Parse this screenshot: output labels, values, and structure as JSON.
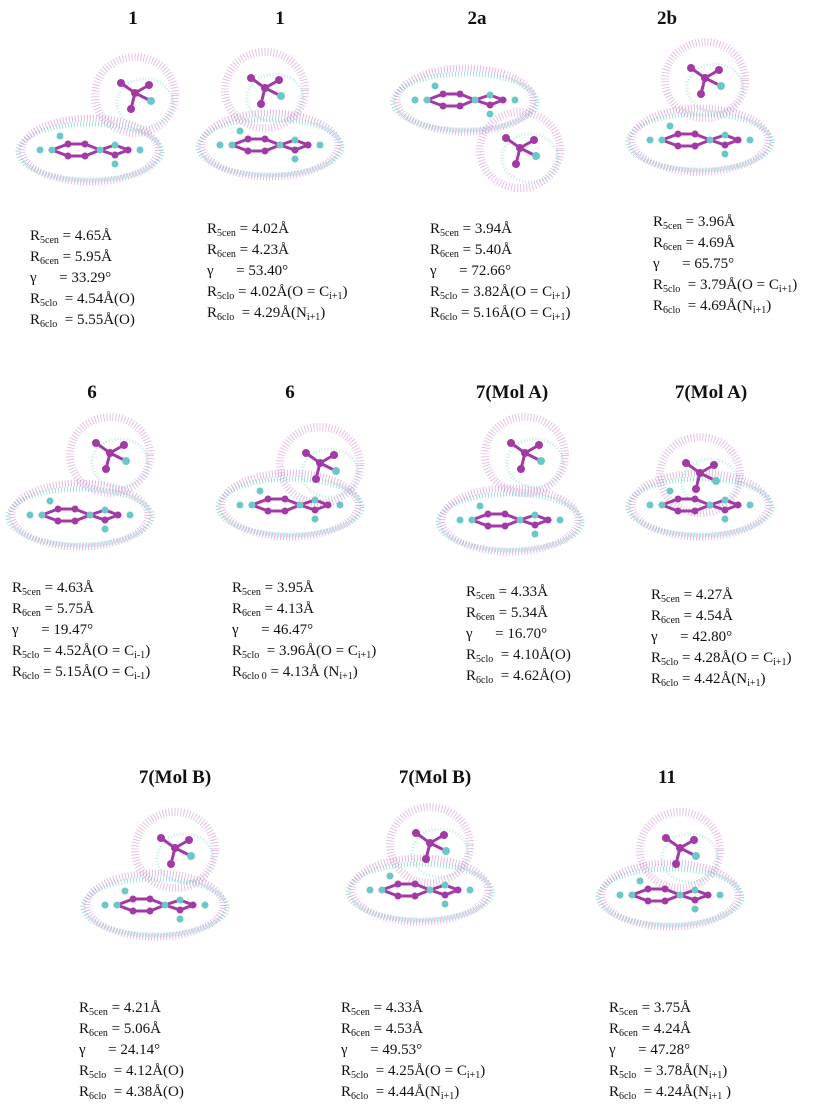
{
  "panels": [
    {
      "title": "1",
      "lines": [
        [
          "R",
          {
            "sub": "5cen"
          },
          " = 4.65Å"
        ],
        [
          "R",
          {
            "sub": "6cen"
          },
          " = 5.95Å"
        ],
        [
          "γ      = 33.29°"
        ],
        [
          "R",
          {
            "sub": "5clo"
          },
          "  = 4.54Å(O)"
        ],
        [
          "R",
          {
            "sub": "6clo"
          },
          "  = 5.55Å(O)"
        ]
      ]
    },
    {
      "title": "1",
      "lines": [
        [
          "R",
          {
            "sub": "5cen"
          },
          " = 4.02Å"
        ],
        [
          "R",
          {
            "sub": "6cen"
          },
          " = 4.23Å"
        ],
        [
          "γ      = 53.40°"
        ],
        [
          "R",
          {
            "sub": "5clo"
          },
          " = 4.02Å(O = C",
          {
            "sub": "i+1"
          },
          ")"
        ],
        [
          "R",
          {
            "sub": "6clo"
          },
          "  = 4.29Å(N",
          {
            "sub": "i+1"
          },
          ")"
        ]
      ]
    },
    {
      "title": "2a",
      "lines": [
        [
          "R",
          {
            "sub": "5cen"
          },
          " = 3.94Å"
        ],
        [
          "R",
          {
            "sub": "6cen"
          },
          " = 5.40Å"
        ],
        [
          "γ      = 72.66°"
        ],
        [
          "R",
          {
            "sub": "5clo"
          },
          " = 3.82Å(O = C",
          {
            "sub": "i+1"
          },
          ")"
        ],
        [
          "R",
          {
            "sub": "6clo"
          },
          " = 5.16Å(O = C",
          {
            "sub": "i+1"
          },
          ")"
        ]
      ]
    },
    {
      "title": "2b",
      "lines": [
        [
          "R",
          {
            "sub": "5cen"
          },
          " = 3.96Å"
        ],
        [
          "R",
          {
            "sub": "6cen"
          },
          " = 4.69Å"
        ],
        [
          "γ      = 65.75°"
        ],
        [
          "R",
          {
            "sub": "5clo"
          },
          "  = 3.79Å(O = C",
          {
            "sub": "i+1"
          },
          ")"
        ],
        [
          "R",
          {
            "sub": "6clo"
          },
          "  = 4.69Å(N",
          {
            "sub": "i+1"
          },
          ")"
        ]
      ]
    },
    {
      "title": "6",
      "lines": [
        [
          "R",
          {
            "sub": "5cen"
          },
          " = 4.63Å"
        ],
        [
          "R",
          {
            "sub": "6cen"
          },
          " = 5.75Å"
        ],
        [
          "γ      = 19.47°"
        ],
        [
          "R",
          {
            "sub": "5clo"
          },
          " = 4.52Å(O = C",
          {
            "sub": "i-1"
          },
          ")"
        ],
        [
          "R",
          {
            "sub": "6clo"
          },
          " = 5.15Å(O = C",
          {
            "sub": "i-1"
          },
          ")"
        ]
      ]
    },
    {
      "title": "6",
      "lines": [
        [
          "R",
          {
            "sub": "5cen"
          },
          " = 3.95Å"
        ],
        [
          "R",
          {
            "sub": "6cen"
          },
          " = 4.13Å"
        ],
        [
          "γ      = 46.47°"
        ],
        [
          "R",
          {
            "sub": "5clo"
          },
          "  = 3.96Å(O = C",
          {
            "sub": "i+1"
          },
          ")"
        ],
        [
          "R",
          {
            "sub": "6clo 0"
          },
          " = 4.13Å (N",
          {
            "sub": "i+1"
          },
          ")"
        ]
      ]
    },
    {
      "title": "7(Mol A)",
      "lines": [
        [
          "R",
          {
            "sub": "5cen"
          },
          " = 4.33Å"
        ],
        [
          "R",
          {
            "sub": "6cen"
          },
          " = 5.34Å"
        ],
        [
          "γ      = 16.70°"
        ],
        [
          "R",
          {
            "sub": "5clo"
          },
          "  = 4.10Å(O)"
        ],
        [
          "R",
          {
            "sub": "6clo"
          },
          "  = 4.62Å(O)"
        ]
      ]
    },
    {
      "title": "7(Mol A)",
      "lines": [
        [
          "R",
          {
            "sub": "5cen"
          },
          " = 4.27Å"
        ],
        [
          "R",
          {
            "sub": "6cen"
          },
          " = 4.54Å"
        ],
        [
          "γ      = 42.80°"
        ],
        [
          "R",
          {
            "sub": "5clo"
          },
          " = 4.28Å(O = C",
          {
            "sub": "i+1"
          },
          ")"
        ],
        [
          "R",
          {
            "sub": "6clo"
          },
          " = 4.42Å(N",
          {
            "sub": "i+1"
          },
          ")"
        ]
      ]
    },
    {
      "title": "7(Mol B)",
      "lines": [
        [
          "R",
          {
            "sub": "5cen"
          },
          " = 4.21Å"
        ],
        [
          "R",
          {
            "sub": "6cen"
          },
          " = 5.06Å"
        ],
        [
          "γ      = 24.14°"
        ],
        [
          "R",
          {
            "sub": "5clo"
          },
          "  = 4.12Å(O)"
        ],
        [
          "R",
          {
            "sub": "6clo"
          },
          "  = 4.38Å(O)"
        ]
      ]
    },
    {
      "title": "7(Mol B)",
      "lines": [
        [
          "R",
          {
            "sub": "5cen"
          },
          " = 4.33Å"
        ],
        [
          "R",
          {
            "sub": "6cen"
          },
          " = 4.53Å"
        ],
        [
          "γ      = 49.53°"
        ],
        [
          "R",
          {
            "sub": "5clo"
          },
          "  = 4.25Å(O = C",
          {
            "sub": "i+1"
          },
          ")"
        ],
        [
          "R",
          {
            "sub": "6clo"
          },
          "  = 4.44Å(N",
          {
            "sub": "i+1"
          },
          ")"
        ]
      ]
    },
    {
      "title": "11",
      "lines": [
        [
          "R",
          {
            "sub": "5cen"
          },
          " = 3.75Å"
        ],
        [
          "R",
          {
            "sub": "6cen"
          },
          " = 4.24Å"
        ],
        [
          "γ      = 47.28°"
        ],
        [
          "R",
          {
            "sub": "5clo"
          },
          "  = 3.78Å(N",
          {
            "sub": "i+1"
          },
          ")"
        ],
        [
          "R",
          {
            "sub": "6clo"
          },
          "  = 4.24Å(N",
          {
            "sub": "i+1"
          },
          " )"
        ]
      ]
    }
  ]
}
